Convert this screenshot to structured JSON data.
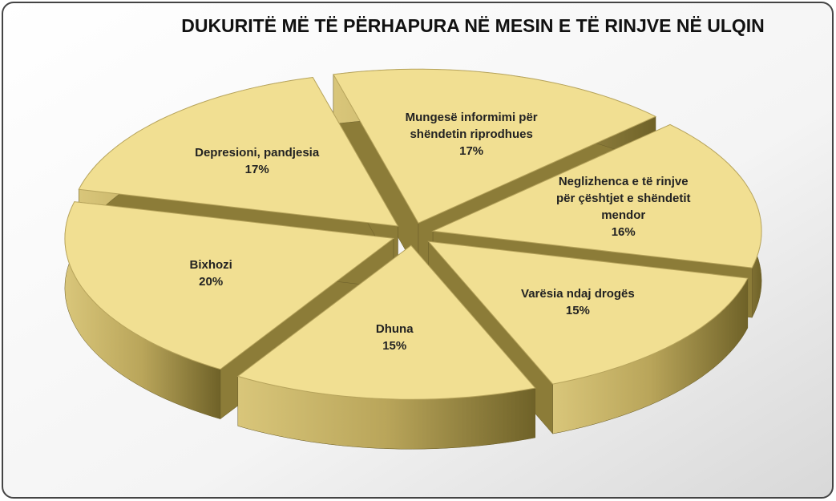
{
  "chart_data": {
    "type": "pie3d",
    "title": "DUKURITË MË TË PËRHAPURA NË MESIN E TË RINJVE NË ULQIN",
    "categories": [
      "Mungesë informimi për shëndetin riprodhues",
      "Neglizhenca e të rinjve për çështjet e shëndetit mendor",
      "Varësia ndaj drogës",
      "Dhuna",
      "Bixhozi",
      "Depresioni, pandjesia"
    ],
    "values": [
      17,
      16,
      15,
      15,
      20,
      17
    ],
    "value_labels": [
      "17%",
      "16%",
      "15%",
      "15%",
      "20%",
      "17%"
    ],
    "color": "#f1df92"
  }
}
